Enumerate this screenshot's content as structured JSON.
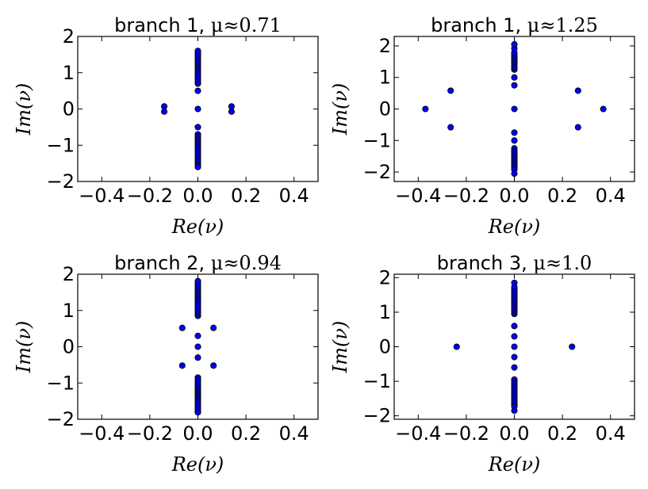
{
  "chart_data": [
    {
      "type": "scatter",
      "title_prefix": "branch 1, ",
      "title_math": "μ≈0.71",
      "xlabel": "Re(ν)",
      "ylabel": "Im(ν)",
      "xlim": [
        -0.5,
        0.5
      ],
      "ylim": [
        -2,
        2
      ],
      "xticks": [
        -0.4,
        -0.2,
        0.0,
        0.2,
        0.4
      ],
      "yticks": [
        2,
        1,
        0,
        -1,
        -2
      ],
      "marker_color": "#0000ff",
      "points": [
        [
          -0.14,
          0.07
        ],
        [
          -0.14,
          -0.07
        ],
        [
          0.14,
          0.07
        ],
        [
          0.14,
          -0.07
        ],
        [
          0,
          0
        ],
        [
          0,
          0.5
        ],
        [
          0,
          -0.5
        ],
        [
          0,
          0.7
        ],
        [
          0,
          0.76
        ],
        [
          0,
          0.82
        ],
        [
          0,
          0.88
        ],
        [
          0,
          0.94
        ],
        [
          0,
          1.0
        ],
        [
          0,
          1.06
        ],
        [
          0,
          1.12
        ],
        [
          0,
          1.18
        ],
        [
          0,
          1.24
        ],
        [
          0,
          1.3
        ],
        [
          0,
          1.36
        ],
        [
          0,
          1.42
        ],
        [
          0,
          1.48
        ],
        [
          0,
          1.54
        ],
        [
          0,
          1.6
        ],
        [
          0,
          -0.7
        ],
        [
          0,
          -0.76
        ],
        [
          0,
          -0.82
        ],
        [
          0,
          -0.88
        ],
        [
          0,
          -0.94
        ],
        [
          0,
          -1.0
        ],
        [
          0,
          -1.06
        ],
        [
          0,
          -1.12
        ],
        [
          0,
          -1.18
        ],
        [
          0,
          -1.24
        ],
        [
          0,
          -1.3
        ],
        [
          0,
          -1.36
        ],
        [
          0,
          -1.42
        ],
        [
          0,
          -1.48
        ],
        [
          0,
          -1.54
        ],
        [
          0,
          -1.6
        ]
      ]
    },
    {
      "type": "scatter",
      "title_prefix": "branch 1, ",
      "title_math": "μ≈1.25",
      "xlabel": "Re(ν)",
      "ylabel": "Im(ν)",
      "xlim": [
        -0.5,
        0.5
      ],
      "ylim": [
        -2.3,
        2.3
      ],
      "xticks": [
        -0.4,
        -0.2,
        0.0,
        0.2,
        0.4
      ],
      "yticks": [
        2,
        1,
        0,
        -1,
        -2
      ],
      "marker_color": "#0000ff",
      "points": [
        [
          -0.37,
          0
        ],
        [
          0.37,
          0
        ],
        [
          -0.265,
          0.58
        ],
        [
          -0.265,
          -0.58
        ],
        [
          0.265,
          0.58
        ],
        [
          0.265,
          -0.58
        ],
        [
          0,
          0
        ],
        [
          0,
          0.75
        ],
        [
          0,
          1.0
        ],
        [
          0,
          -0.75
        ],
        [
          0,
          -1.0
        ],
        [
          0,
          1.25
        ],
        [
          0,
          1.31
        ],
        [
          0,
          1.37
        ],
        [
          0,
          1.43
        ],
        [
          0,
          1.49
        ],
        [
          0,
          1.55
        ],
        [
          0,
          1.61
        ],
        [
          0,
          1.67
        ],
        [
          0,
          1.73
        ],
        [
          0,
          1.79
        ],
        [
          0,
          1.92
        ],
        [
          0,
          2.05
        ],
        [
          0,
          -1.25
        ],
        [
          0,
          -1.31
        ],
        [
          0,
          -1.37
        ],
        [
          0,
          -1.43
        ],
        [
          0,
          -1.49
        ],
        [
          0,
          -1.55
        ],
        [
          0,
          -1.61
        ],
        [
          0,
          -1.67
        ],
        [
          0,
          -1.73
        ],
        [
          0,
          -1.79
        ],
        [
          0,
          -1.85
        ],
        [
          0,
          -1.92
        ],
        [
          0,
          -2.05
        ]
      ]
    },
    {
      "type": "scatter",
      "title_prefix": "branch 2, ",
      "title_math": "μ≈0.94",
      "xlabel": "Re(ν)",
      "ylabel": "Im(ν)",
      "xlim": [
        -0.5,
        0.5
      ],
      "ylim": [
        -2,
        2
      ],
      "xticks": [
        -0.4,
        -0.2,
        0.0,
        0.2,
        0.4
      ],
      "yticks": [
        2,
        1,
        0,
        -1,
        -2
      ],
      "marker_color": "#0000ff",
      "points": [
        [
          -0.065,
          0.52
        ],
        [
          0.065,
          0.52
        ],
        [
          -0.065,
          -0.52
        ],
        [
          0.065,
          -0.52
        ],
        [
          0,
          0
        ],
        [
          0,
          0.3
        ],
        [
          0,
          -0.3
        ],
        [
          0,
          0.85
        ],
        [
          0,
          0.91
        ],
        [
          0,
          0.97
        ],
        [
          0,
          1.03
        ],
        [
          0,
          1.09
        ],
        [
          0,
          1.15
        ],
        [
          0,
          1.21
        ],
        [
          0,
          1.27
        ],
        [
          0,
          1.33
        ],
        [
          0,
          1.39
        ],
        [
          0,
          1.45
        ],
        [
          0,
          1.51
        ],
        [
          0,
          1.57
        ],
        [
          0,
          1.63
        ],
        [
          0,
          1.69
        ],
        [
          0,
          1.75
        ],
        [
          0,
          1.81
        ],
        [
          0,
          -0.85
        ],
        [
          0,
          -0.91
        ],
        [
          0,
          -0.97
        ],
        [
          0,
          -1.03
        ],
        [
          0,
          -1.09
        ],
        [
          0,
          -1.15
        ],
        [
          0,
          -1.21
        ],
        [
          0,
          -1.27
        ],
        [
          0,
          -1.33
        ],
        [
          0,
          -1.39
        ],
        [
          0,
          -1.45
        ],
        [
          0,
          -1.51
        ],
        [
          0,
          -1.57
        ],
        [
          0,
          -1.63
        ],
        [
          0,
          -1.69
        ],
        [
          0,
          -1.75
        ],
        [
          0,
          -1.81
        ]
      ]
    },
    {
      "type": "scatter",
      "title_prefix": "branch 3, ",
      "title_math": "μ≈1.0",
      "xlabel": "Re(ν)",
      "ylabel": "Im(ν)",
      "xlim": [
        -0.5,
        0.5
      ],
      "ylim": [
        -2.1,
        2.1
      ],
      "xticks": [
        -0.4,
        -0.2,
        0.0,
        0.2,
        0.4
      ],
      "yticks": [
        2,
        1,
        0,
        -1,
        -2
      ],
      "marker_color": "#0000ff",
      "points": [
        [
          -0.24,
          0
        ],
        [
          0.24,
          0
        ],
        [
          0,
          0
        ],
        [
          0,
          0.3
        ],
        [
          0,
          0.6
        ],
        [
          0,
          -0.3
        ],
        [
          0,
          -0.6
        ],
        [
          0,
          0.95
        ],
        [
          0,
          1.01
        ],
        [
          0,
          1.07
        ],
        [
          0,
          1.13
        ],
        [
          0,
          1.19
        ],
        [
          0,
          1.25
        ],
        [
          0,
          1.31
        ],
        [
          0,
          1.37
        ],
        [
          0,
          1.43
        ],
        [
          0,
          1.49
        ],
        [
          0,
          1.55
        ],
        [
          0,
          1.61
        ],
        [
          0,
          1.67
        ],
        [
          0,
          1.73
        ],
        [
          0,
          1.85
        ],
        [
          0,
          -0.95
        ],
        [
          0,
          -1.01
        ],
        [
          0,
          -1.07
        ],
        [
          0,
          -1.13
        ],
        [
          0,
          -1.19
        ],
        [
          0,
          -1.25
        ],
        [
          0,
          -1.31
        ],
        [
          0,
          -1.37
        ],
        [
          0,
          -1.43
        ],
        [
          0,
          -1.49
        ],
        [
          0,
          -1.55
        ],
        [
          0,
          -1.61
        ],
        [
          0,
          -1.67
        ],
        [
          0,
          -1.73
        ],
        [
          0,
          -1.85
        ]
      ]
    }
  ]
}
